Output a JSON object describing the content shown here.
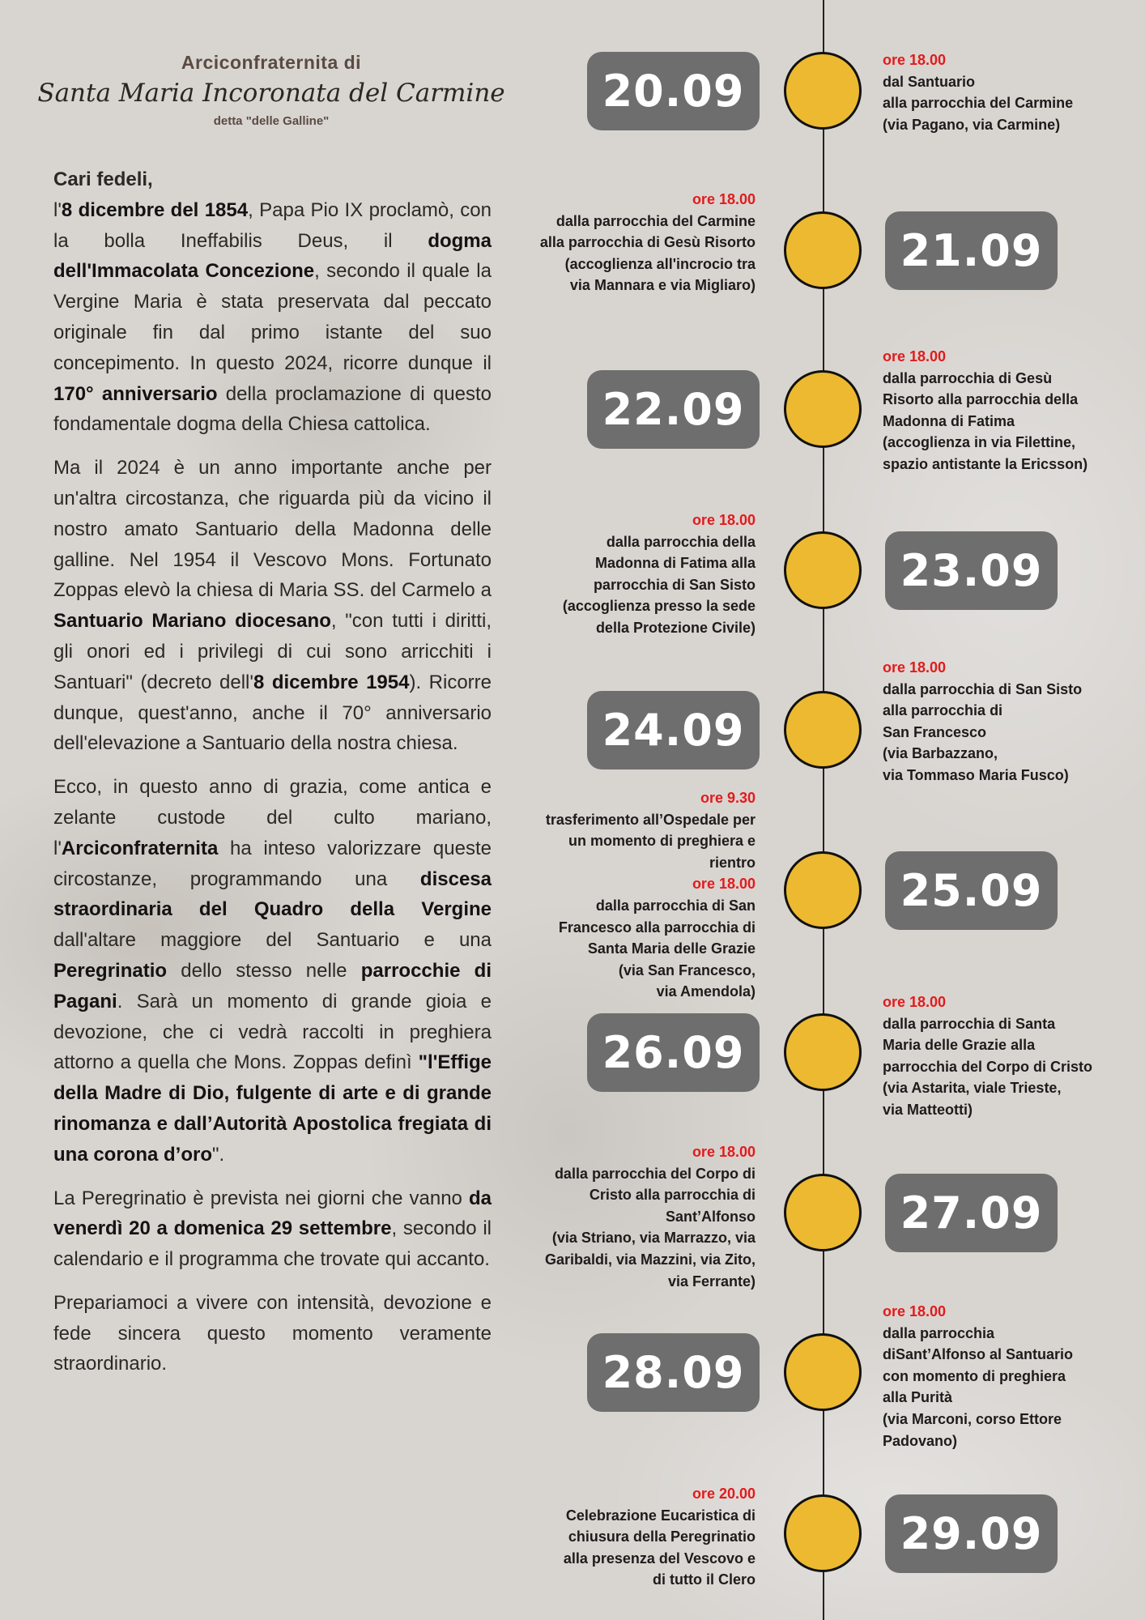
{
  "header": {
    "top": "Arciconfraternita di",
    "title": "Santa Maria Incoronata del Carmine",
    "subtitle": "detta \"delle Galline\""
  },
  "letter": {
    "greeting": "Cari fedeli,",
    "paragraphs": [
      [
        {
          "t": "l'"
        },
        {
          "t": "8 dicembre del 1854",
          "b": true
        },
        {
          "t": ", Papa Pio IX proclamò, con la bolla Ineffabilis Deus, il "
        },
        {
          "t": "dogma dell'Immacolata Concezione",
          "b": true
        },
        {
          "t": ", secondo il quale la Vergine Maria è stata preservata dal peccato originale fin dal primo istante del suo concepimento. In questo 2024, ricorre dunque il "
        },
        {
          "t": "170° anniversario",
          "b": true
        },
        {
          "t": " della proclamazione di questo fondamentale dogma della Chiesa cattolica."
        }
      ],
      [
        {
          "t": "Ma il 2024 è un anno importante anche per un'altra circostanza, che riguarda più da vicino il nostro amato Santuario della Madonna delle galline. Nel 1954 il Vescovo Mons. Fortunato Zoppas elevò la chiesa di Maria SS. del Carmelo a "
        },
        {
          "t": "Santuario Mariano diocesano",
          "b": true
        },
        {
          "t": ", \"con tutti i diritti, gli onori ed i privilegi di cui sono arricchiti i Santuari\" (decreto dell'"
        },
        {
          "t": "8 dicembre 1954",
          "b": true
        },
        {
          "t": "). Ricorre dunque, quest'anno, anche il 70° anniversario dell'elevazione a Santuario della nostra chiesa."
        }
      ],
      [
        {
          "t": "Ecco, in questo anno di grazia, come antica e zelante custode del culto mariano, l'"
        },
        {
          "t": "Arciconfraternita",
          "b": true
        },
        {
          "t": " ha inteso valorizzare queste circostanze, programmando una "
        },
        {
          "t": "discesa straordinaria del Quadro della Vergine",
          "b": true
        },
        {
          "t": " dall'altare maggiore del Santuario e una "
        },
        {
          "t": "Peregrinatio",
          "b": true
        },
        {
          "t": " dello stesso nelle "
        },
        {
          "t": "parrocchie di Pagani",
          "b": true
        },
        {
          "t": ". Sarà un momento di grande gioia e devozione, che ci vedrà raccolti in preghiera attorno a quella che Mons. Zoppas definì "
        },
        {
          "t": "\"l'Effige della Madre di Dio, fulgente di arte e di grande rinomanza e dall’Autorità Apostolica fregiata di una corona d’oro",
          "b": true
        },
        {
          "t": "\"."
        }
      ],
      [
        {
          "t": "La Peregrinatio è prevista nei giorni che vanno "
        },
        {
          "t": "da venerdì 20 a domenica 29 settembre",
          "b": true
        },
        {
          "t": ", secondo il calendario e il programma che trovate qui accanto."
        }
      ],
      [
        {
          "t": "Prepariamoci a vivere con intensità, devozione e fede sincera questo momento veramente straordinario."
        }
      ]
    ]
  },
  "timeline": {
    "dot_color": "#ecb931",
    "time_color": "#e21b1b",
    "events": [
      {
        "date": "20.09",
        "lines": [
          {
            "time": "ore 18.00"
          },
          {
            "text": "dal Santuario"
          },
          {
            "text": "alla parrocchia del Carmine"
          },
          {
            "text": "(via Pagano, via Carmine)"
          }
        ]
      },
      {
        "date": "21.09",
        "lines": [
          {
            "time": "ore 18.00"
          },
          {
            "text": "dalla parrocchia del Carmine"
          },
          {
            "text": "alla parrocchia di Gesù Risorto"
          },
          {
            "text": "(accoglienza all'incrocio tra"
          },
          {
            "text": "via Mannara e via Migliaro)"
          }
        ]
      },
      {
        "date": "22.09",
        "lines": [
          {
            "time": "ore 18.00"
          },
          {
            "text": "dalla parrocchia di Gesù"
          },
          {
            "text": "Risorto alla parrocchia della"
          },
          {
            "text": "Madonna di Fatima"
          },
          {
            "text": "(accoglienza in via Filettine,"
          },
          {
            "text": "spazio antistante la Ericsson)"
          }
        ]
      },
      {
        "date": "23.09",
        "lines": [
          {
            "time": "ore 18.00"
          },
          {
            "text": "dalla parrocchia della"
          },
          {
            "text": "Madonna di Fatima alla"
          },
          {
            "text": "parrocchia di San Sisto"
          },
          {
            "text": "(accoglienza presso la sede"
          },
          {
            "text": "della Protezione Civile)"
          }
        ]
      },
      {
        "date": "24.09",
        "lines": [
          {
            "time": "ore 18.00"
          },
          {
            "text": "dalla parrocchia di San Sisto"
          },
          {
            "text": "alla parrocchia di"
          },
          {
            "text": "San Francesco"
          },
          {
            "text": "(via Barbazzano,"
          },
          {
            "text": "via Tommaso Maria Fusco)"
          }
        ]
      },
      {
        "date": "25.09",
        "lines": [
          {
            "time": "ore 9.30"
          },
          {
            "text": "trasferimento all’Ospedale per"
          },
          {
            "text": "un momento di preghiera e"
          },
          {
            "text": "rientro"
          },
          {
            "time": "ore 18.00"
          },
          {
            "text": "dalla parrocchia di San"
          },
          {
            "text": "Francesco alla parrocchia di"
          },
          {
            "text": "Santa Maria delle Grazie"
          },
          {
            "text": "(via San Francesco,"
          },
          {
            "text": "via Amendola)"
          }
        ]
      },
      {
        "date": "26.09",
        "lines": [
          {
            "time": "ore 18.00"
          },
          {
            "text": "dalla parrocchia di Santa"
          },
          {
            "text": "Maria delle Grazie alla"
          },
          {
            "text": "parrocchia del Corpo di Cristo"
          },
          {
            "text": "(via Astarita, viale Trieste,"
          },
          {
            "text": "via Matteotti)"
          }
        ]
      },
      {
        "date": "27.09",
        "lines": [
          {
            "time": "ore 18.00"
          },
          {
            "text": "dalla parrocchia del Corpo di"
          },
          {
            "text": "Cristo alla parrocchia di"
          },
          {
            "text": "Sant’Alfonso"
          },
          {
            "text": "(via Striano, via Marrazzo, via"
          },
          {
            "text": "Garibaldi, via Mazzini, via Zito,"
          },
          {
            "text": "via Ferrante)"
          }
        ]
      },
      {
        "date": "28.09",
        "lines": [
          {
            "time": "ore 18.00"
          },
          {
            "text": "dalla parrocchia"
          },
          {
            "text": "diSant’Alfonso al Santuario"
          },
          {
            "text": "con momento di preghiera"
          },
          {
            "text": "alla Purità"
          },
          {
            "text": "(via Marconi, corso Ettore"
          },
          {
            "text": "Padovano)"
          }
        ]
      },
      {
        "date": "29.09",
        "lines": [
          {
            "time": "ore 20.00"
          },
          {
            "text": "Celebrazione Eucaristica di"
          },
          {
            "text": "chiusura della Peregrinatio"
          },
          {
            "text": "alla presenza del Vescovo e"
          },
          {
            "text": "di tutto il Clero"
          }
        ]
      }
    ]
  }
}
